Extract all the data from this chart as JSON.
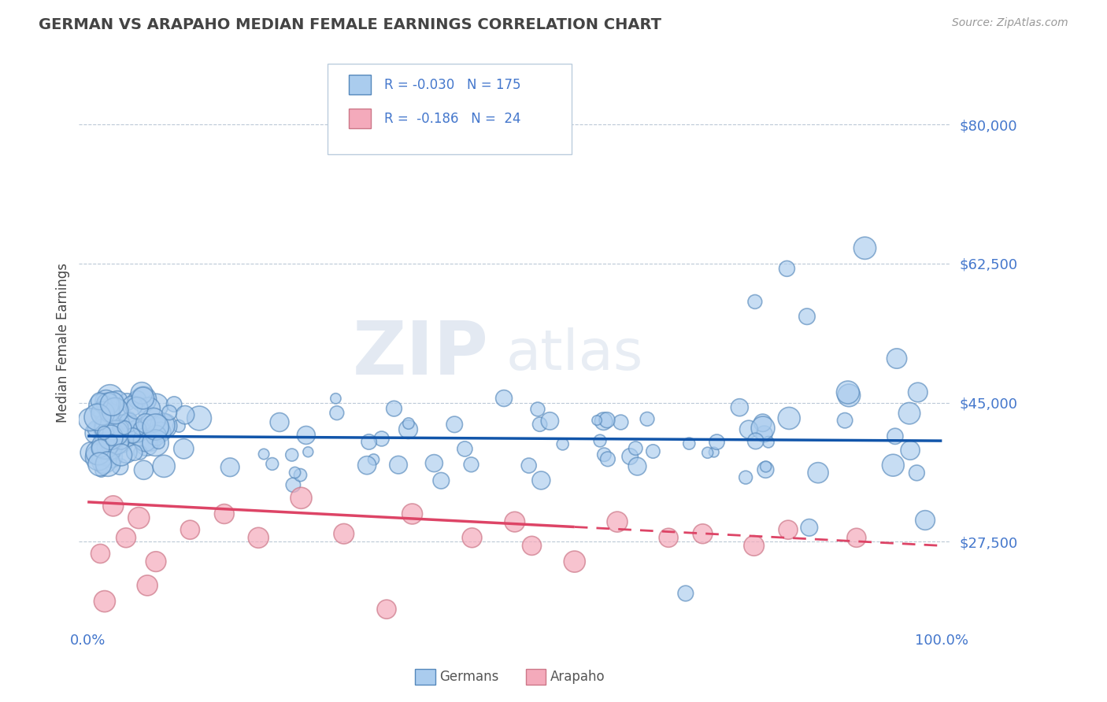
{
  "title": "GERMAN VS ARAPAHO MEDIAN FEMALE EARNINGS CORRELATION CHART",
  "source_text": "Source: ZipAtlas.com",
  "ylabel": "Median Female Earnings",
  "xlim": [
    -1.0,
    101.0
  ],
  "ylim": [
    17000,
    88000
  ],
  "yticks": [
    27500,
    45000,
    62500,
    80000
  ],
  "ytick_labels": [
    "$27,500",
    "$45,000",
    "$62,500",
    "$80,000"
  ],
  "xtick_labels": [
    "0.0%",
    "100.0%"
  ],
  "xtick_pos": [
    0.0,
    100.0
  ],
  "german_color": "#aaccee",
  "german_edge_color": "#5588bb",
  "arapaho_color": "#f4aabb",
  "arapaho_edge_color": "#cc7788",
  "trend_german_color": "#1155aa",
  "trend_arapaho_color": "#dd4466",
  "R_german": -0.03,
  "N_german": 175,
  "R_arapaho": -0.186,
  "N_arapaho": 24,
  "watermark_zip": "ZIP",
  "watermark_atlas": "atlas",
  "background_color": "#ffffff",
  "grid_color": "#aabbcc",
  "title_color": "#444444",
  "tick_color": "#4477cc",
  "legend_text_color": "#4477cc",
  "source_color": "#999999",
  "ylabel_color": "#444444"
}
